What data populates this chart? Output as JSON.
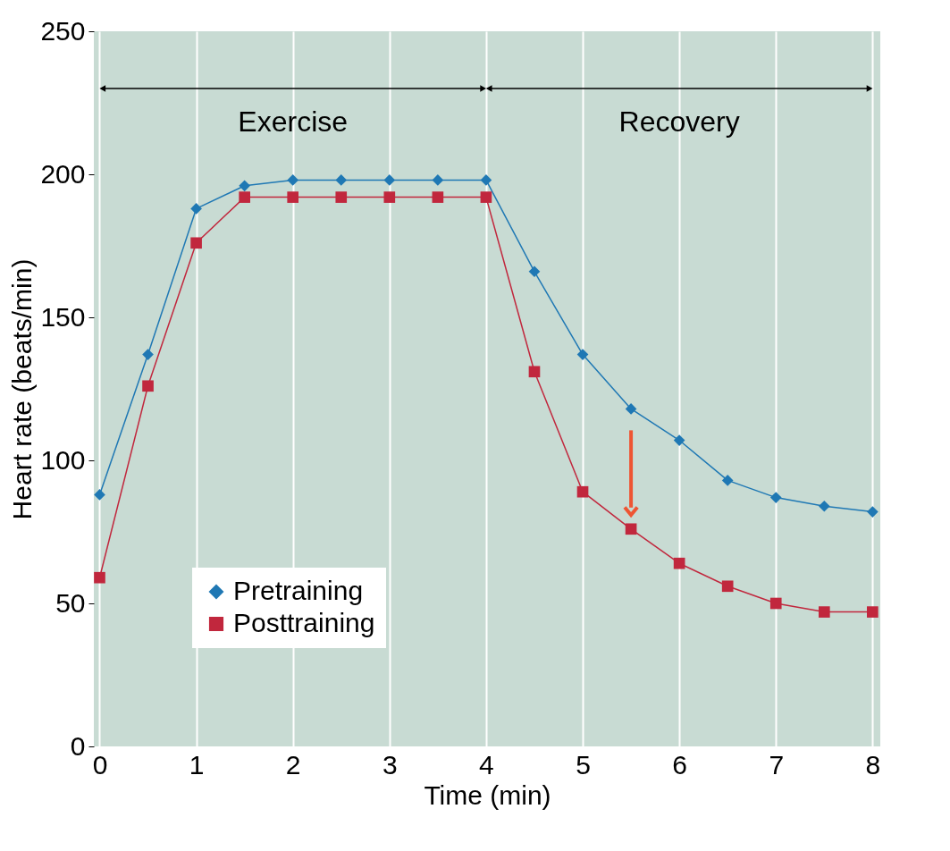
{
  "chart_data": {
    "type": "line",
    "xlabel": "Time (min)",
    "ylabel": "Heart rate (beats/min)",
    "x": [
      0,
      0.5,
      1,
      1.5,
      2,
      2.5,
      3,
      3.5,
      4,
      4.5,
      5,
      5.5,
      6,
      6.5,
      7,
      7.5,
      8
    ],
    "series": [
      {
        "name": "Pretraining",
        "color": "#1f78b4",
        "marker": "diamond",
        "values": [
          88,
          137,
          188,
          196,
          198,
          198,
          198,
          198,
          198,
          166,
          137,
          118,
          107,
          93,
          87,
          84,
          82
        ]
      },
      {
        "name": "Posttraining",
        "color": "#c1273d",
        "marker": "square",
        "values": [
          59,
          126,
          176,
          192,
          192,
          192,
          192,
          192,
          192,
          131,
          89,
          76,
          64,
          56,
          50,
          47,
          47
        ]
      }
    ],
    "xlim": [
      -0.06,
      8.08
    ],
    "ylim": [
      0,
      250
    ],
    "xticks": [
      0,
      1,
      2,
      3,
      4,
      5,
      6,
      7,
      8
    ],
    "yticks": [
      0,
      50,
      100,
      150,
      200,
      250
    ],
    "grid": "x",
    "legend": "bottom left",
    "annotations": [
      "Exercise",
      "Recovery"
    ]
  }
}
